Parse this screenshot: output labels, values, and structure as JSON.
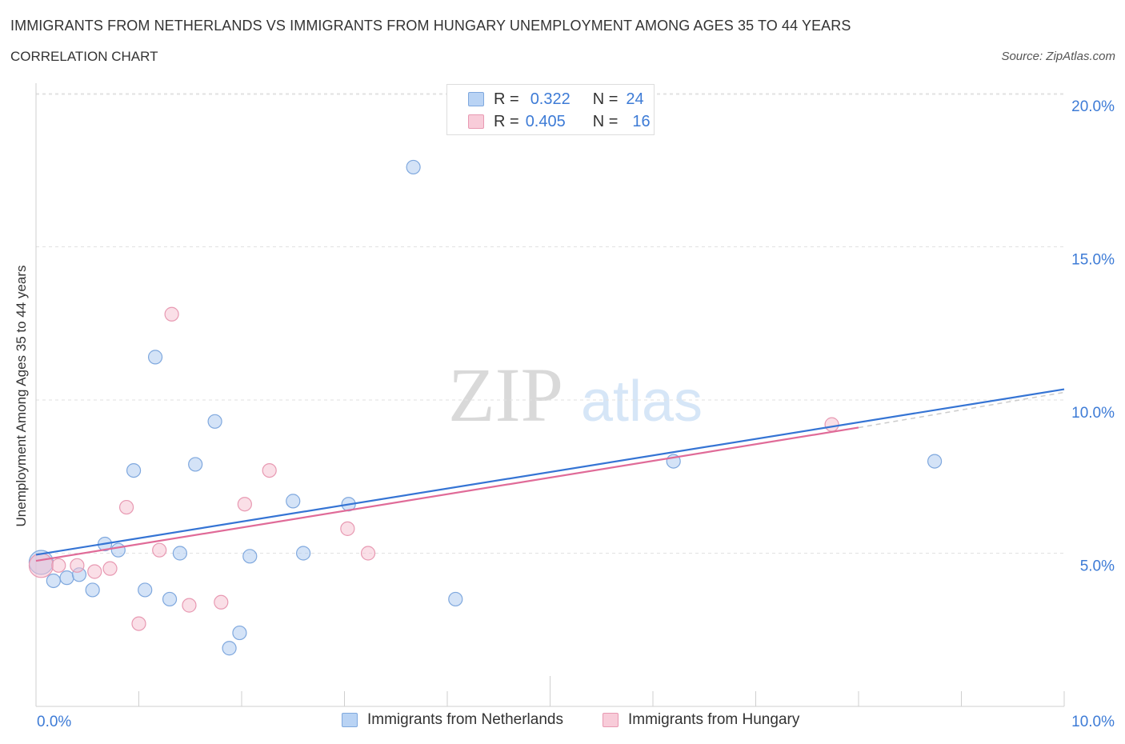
{
  "title": "IMMIGRANTS FROM NETHERLANDS VS IMMIGRANTS FROM HUNGARY UNEMPLOYMENT AMONG AGES 35 TO 44 YEARS",
  "subtitle": "CORRELATION CHART",
  "source": "Source: ZipAtlas.com",
  "watermark": {
    "zip": "ZIP",
    "atlas": "atlas"
  },
  "legend": {
    "rows": [
      {
        "r_label": "R = ",
        "r_value": "0.322",
        "n_label": "N = ",
        "n_value": "24"
      },
      {
        "r_label": "R = ",
        "r_value": "0.405",
        "n_label": "N = ",
        "n_value": "16"
      }
    ]
  },
  "chart_data": {
    "type": "scatter",
    "title": "",
    "xlabel": "",
    "ylabel": "Unemployment Among Ages 35 to 44 years",
    "xlim": [
      0,
      10
    ],
    "ylim": [
      0,
      20
    ],
    "x_tick_labels": [
      "0.0%",
      "10.0%"
    ],
    "y_tick_values": [
      5,
      10,
      15,
      20
    ],
    "y_tick_labels": [
      "5.0%",
      "10.0%",
      "15.0%",
      "20.0%"
    ],
    "grid": true,
    "legend_position": "bottom",
    "series": [
      {
        "name": "Immigrants from Netherlands",
        "color": "#a9c8f0",
        "stroke": "#7fa8de",
        "trend_color": "#3574d4",
        "points": [
          {
            "x": 0.05,
            "y": 4.7,
            "big": true
          },
          {
            "x": 0.17,
            "y": 4.1
          },
          {
            "x": 0.3,
            "y": 4.2
          },
          {
            "x": 0.42,
            "y": 4.3
          },
          {
            "x": 0.55,
            "y": 3.8
          },
          {
            "x": 0.67,
            "y": 5.3
          },
          {
            "x": 0.8,
            "y": 5.1
          },
          {
            "x": 0.95,
            "y": 7.7
          },
          {
            "x": 1.06,
            "y": 3.8
          },
          {
            "x": 1.16,
            "y": 11.4
          },
          {
            "x": 1.3,
            "y": 3.5
          },
          {
            "x": 1.4,
            "y": 5.0
          },
          {
            "x": 1.55,
            "y": 7.9
          },
          {
            "x": 1.74,
            "y": 9.3
          },
          {
            "x": 1.88,
            "y": 1.9
          },
          {
            "x": 1.98,
            "y": 2.4
          },
          {
            "x": 2.08,
            "y": 4.9
          },
          {
            "x": 2.5,
            "y": 6.7
          },
          {
            "x": 2.6,
            "y": 5.0
          },
          {
            "x": 3.04,
            "y": 6.6
          },
          {
            "x": 3.67,
            "y": 17.6
          },
          {
            "x": 4.08,
            "y": 3.5
          },
          {
            "x": 6.2,
            "y": 8.0
          },
          {
            "x": 8.74,
            "y": 8.0
          }
        ],
        "trend": {
          "x0": 0,
          "y0": 4.95,
          "x1": 10,
          "y1": 10.35
        }
      },
      {
        "name": "Immigrants from Hungary",
        "color": "#f5c0d0",
        "stroke": "#e899b2",
        "trend_color": "#e06b98",
        "points": [
          {
            "x": 0.05,
            "y": 4.6,
            "big": true
          },
          {
            "x": 0.22,
            "y": 4.6
          },
          {
            "x": 0.4,
            "y": 4.6
          },
          {
            "x": 0.57,
            "y": 4.4
          },
          {
            "x": 0.72,
            "y": 4.5
          },
          {
            "x": 0.88,
            "y": 6.5
          },
          {
            "x": 1.0,
            "y": 2.7
          },
          {
            "x": 1.2,
            "y": 5.1
          },
          {
            "x": 1.32,
            "y": 12.8
          },
          {
            "x": 1.49,
            "y": 3.3
          },
          {
            "x": 1.8,
            "y": 3.4
          },
          {
            "x": 2.03,
            "y": 6.6
          },
          {
            "x": 2.27,
            "y": 7.7
          },
          {
            "x": 3.03,
            "y": 5.8
          },
          {
            "x": 3.23,
            "y": 5.0
          },
          {
            "x": 7.74,
            "y": 9.2
          }
        ],
        "trend": {
          "x0": 0,
          "y0": 4.75,
          "x1": 8.0,
          "y1": 9.1
        },
        "trend_dashed": {
          "x0": 8.0,
          "y0": 9.1,
          "x1": 10,
          "y1": 10.25
        }
      }
    ]
  }
}
